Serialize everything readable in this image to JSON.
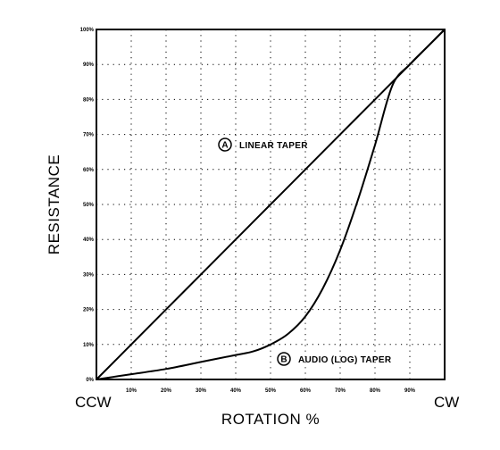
{
  "chart_data": {
    "type": "line",
    "xlabel": "ROTATION %",
    "ylabel": "RESISTANCE",
    "xlim": [
      0,
      100
    ],
    "ylim": [
      0,
      100
    ],
    "grid": true,
    "x_ticks": [
      "10%",
      "20%",
      "30%",
      "40%",
      "50%",
      "60%",
      "70%",
      "80%",
      "90%"
    ],
    "y_ticks": [
      "0%",
      "10%",
      "20%",
      "30%",
      "40%",
      "50%",
      "60%",
      "70%",
      "80%",
      "90%",
      "100%"
    ],
    "x_end_labels": {
      "left": "CCW",
      "right": "CW"
    },
    "series": [
      {
        "marker": "A",
        "name": "LINEAR TAPER",
        "x": [
          0,
          10,
          20,
          30,
          40,
          50,
          60,
          70,
          80,
          90,
          100
        ],
        "y": [
          0,
          10,
          20,
          30,
          40,
          50,
          60,
          70,
          80,
          90,
          100
        ]
      },
      {
        "marker": "B",
        "name": "AUDIO (LOG) TAPER",
        "x": [
          0,
          10,
          20,
          30,
          40,
          45,
          50,
          55,
          60,
          65,
          70,
          75,
          80,
          85,
          90,
          95,
          100
        ],
        "y": [
          0,
          1.5,
          3,
          5,
          7,
          8,
          10,
          13,
          18,
          26,
          37,
          51,
          67,
          84,
          90,
          95,
          100
        ]
      }
    ]
  }
}
